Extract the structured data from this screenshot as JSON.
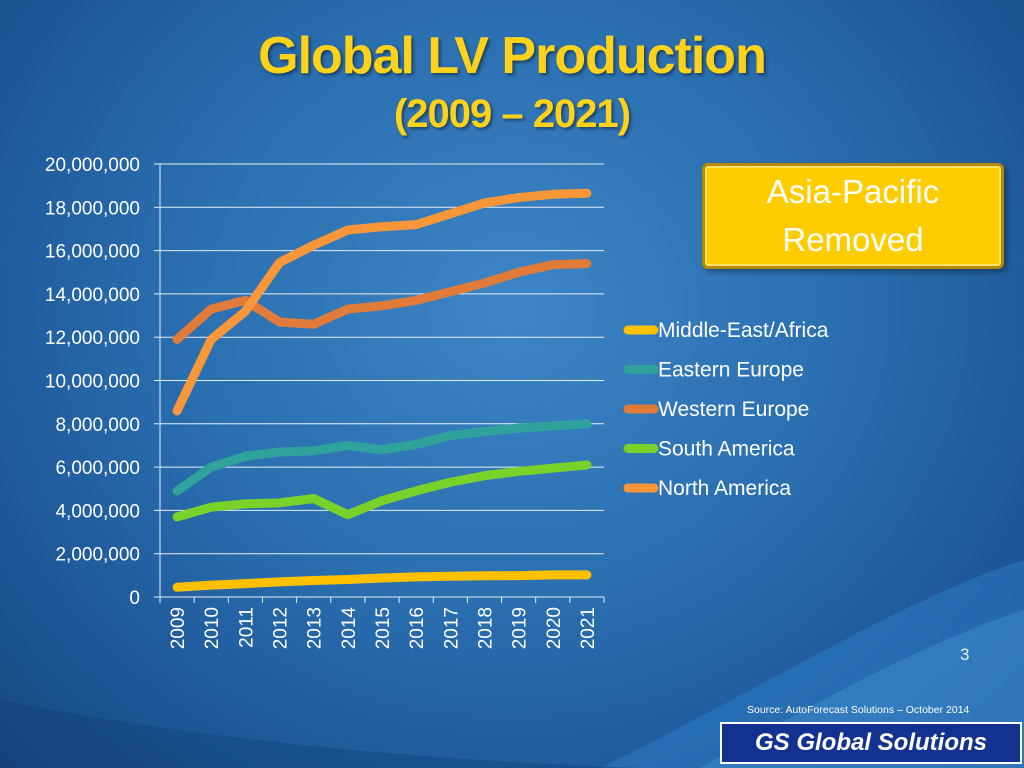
{
  "slide": {
    "title": "Global LV Production",
    "subtitle": "(2009 – 2021)",
    "callout": "Asia-Pacific Removed",
    "page_number": "3",
    "source": "Source: AutoForecast Solutions – October 2014",
    "brand": "GS Global Solutions"
  },
  "chart_data": {
    "type": "line",
    "x": [
      "2009",
      "2010",
      "2011",
      "2012",
      "2013",
      "2014",
      "2015",
      "2016",
      "2017",
      "2018",
      "2019",
      "2020",
      "2021"
    ],
    "ylim": [
      0,
      20000000
    ],
    "yticks": [
      0,
      2000000,
      4000000,
      6000000,
      8000000,
      10000000,
      12000000,
      14000000,
      16000000,
      18000000,
      20000000
    ],
    "ytick_labels": [
      "0",
      "2,000,000",
      "4,000,000",
      "6,000,000",
      "8,000,000",
      "10,000,000",
      "12,000,000",
      "14,000,000",
      "16,000,000",
      "18,000,000",
      "20,000,000"
    ],
    "grid": true,
    "legend_position": "right",
    "series": [
      {
        "name": "Middle-East/Africa",
        "color": "#ffc000",
        "values": [
          450000,
          550000,
          620000,
          700000,
          760000,
          810000,
          880000,
          930000,
          960000,
          980000,
          990000,
          1020000,
          1020000
        ]
      },
      {
        "name": "Eastern Europe",
        "color": "#2fa39b",
        "values": [
          4900000,
          6000000,
          6500000,
          6700000,
          6750000,
          7000000,
          6800000,
          7050000,
          7450000,
          7650000,
          7800000,
          7900000,
          8000000
        ]
      },
      {
        "name": "Western Europe",
        "color": "#e07b39",
        "values": [
          11900000,
          13300000,
          13700000,
          12700000,
          12600000,
          13300000,
          13450000,
          13700000,
          14100000,
          14500000,
          15000000,
          15350000,
          15400000
        ]
      },
      {
        "name": "South America",
        "color": "#7ad12a",
        "values": [
          3700000,
          4150000,
          4300000,
          4350000,
          4550000,
          3800000,
          4450000,
          4900000,
          5300000,
          5600000,
          5800000,
          5950000,
          6100000
        ]
      },
      {
        "name": "North America",
        "color": "#f7973a",
        "values": [
          8600000,
          11900000,
          13200000,
          15450000,
          16250000,
          16950000,
          17100000,
          17200000,
          17700000,
          18200000,
          18450000,
          18600000,
          18650000
        ]
      }
    ]
  }
}
